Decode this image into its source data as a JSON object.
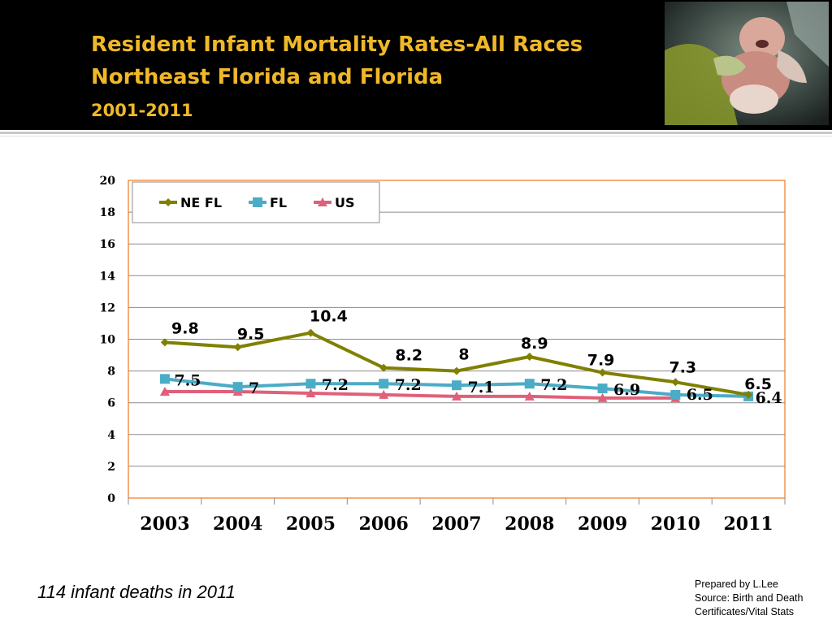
{
  "header": {
    "title_line1": "Resident Infant Mortality Rates-All Races",
    "title_line2": "Northeast Florida and Florida",
    "title_line3": "2001-2011"
  },
  "colors": {
    "header_bg": "#000000",
    "title": "#f0b828",
    "ne_fl": "#808000",
    "fl": "#4bacc6",
    "us": "#e0607a",
    "plot_border": "#f07820"
  },
  "chart_data": {
    "type": "line",
    "categories": [
      "2003",
      "2004",
      "2005",
      "2006",
      "2007",
      "2008",
      "2009",
      "2010",
      "2011"
    ],
    "ylim": [
      0,
      20
    ],
    "yticks": [
      "0",
      "2",
      "4",
      "6",
      "8",
      "10",
      "12",
      "14",
      "16",
      "18",
      "20"
    ],
    "grid": true,
    "legend_position": "top-left",
    "series": [
      {
        "name": "NE FL",
        "values": [
          9.8,
          9.5,
          10.4,
          8.2,
          8,
          8.9,
          7.9,
          7.3,
          6.5
        ],
        "labels": [
          "9.8",
          "9.5",
          "10.4",
          "8.2",
          "8",
          "8.9",
          "7.9",
          "7.3",
          "6.5"
        ]
      },
      {
        "name": "FL",
        "values": [
          7.5,
          7,
          7.2,
          7.2,
          7.1,
          7.2,
          6.9,
          6.5,
          6.4
        ],
        "labels": [
          "7.5",
          "7",
          "7.2",
          "7.2",
          "7.1",
          "7.2",
          "6.9",
          "6.5",
          "6.4"
        ]
      },
      {
        "name": "US",
        "values": [
          6.7,
          6.7,
          6.6,
          6.5,
          6.4,
          6.4,
          6.3,
          6.3,
          null
        ],
        "labels": []
      }
    ]
  },
  "footer": {
    "note": "114 infant deaths in 2011",
    "credit_line1": "Prepared by L.Lee",
    "credit_line2": "Source: Birth and Death",
    "credit_line3": "Certificates/Vital Stats"
  }
}
